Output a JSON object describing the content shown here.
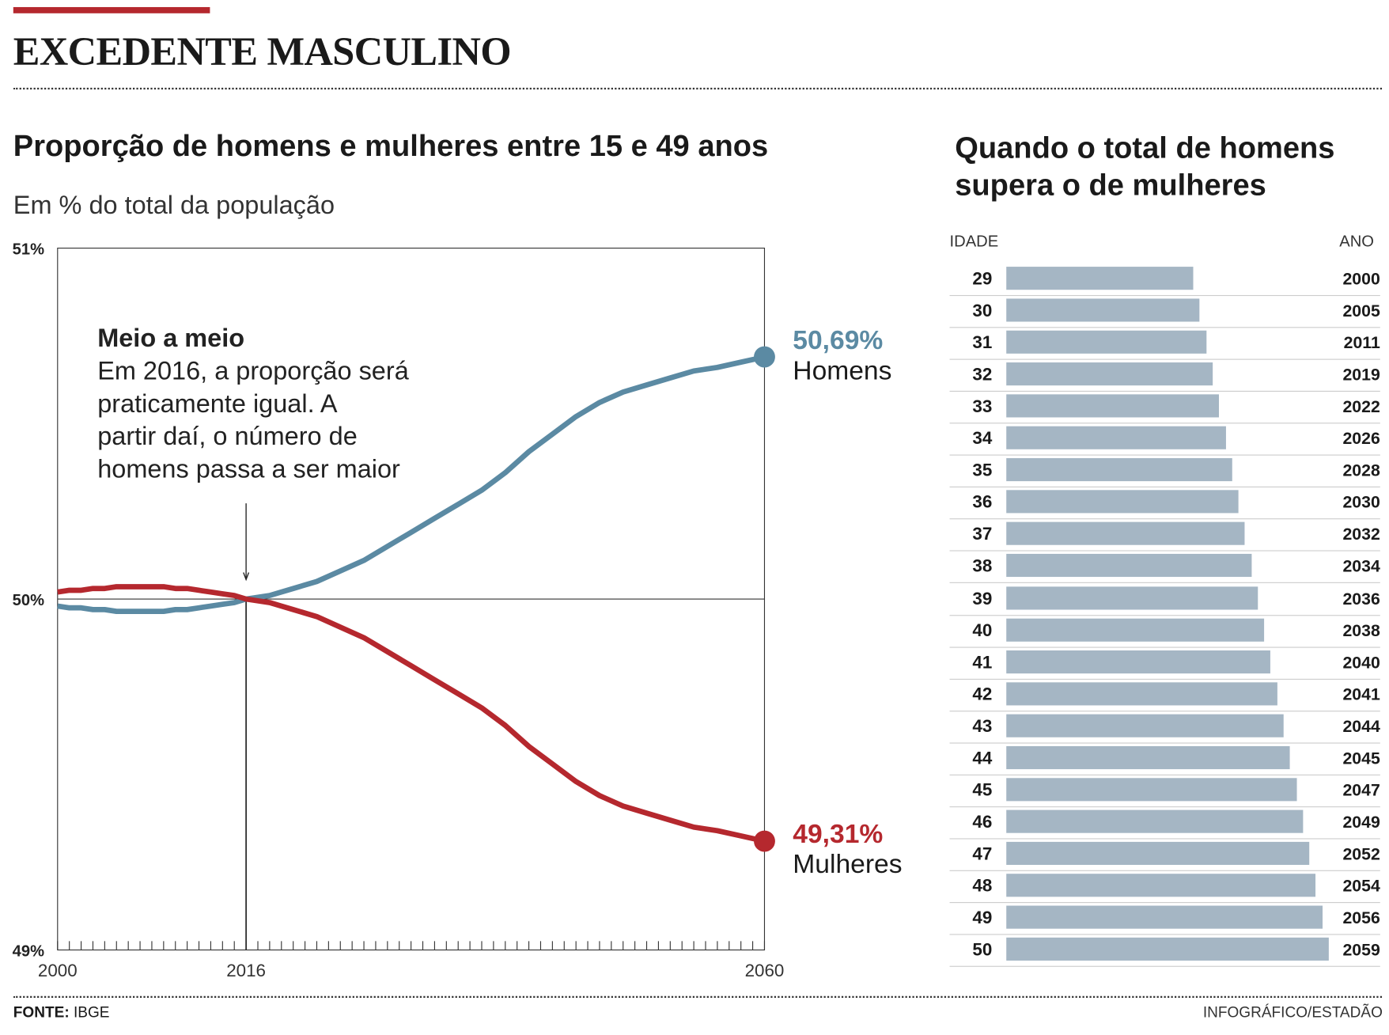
{
  "header": {
    "title": "EXCEDENTE MASCULINO"
  },
  "chart_data": [
    {
      "type": "line",
      "title": "Proporção de homens e mulheres entre 15 e 49 anos",
      "subtitle": "Em % do total da população",
      "ylim": [
        49,
        51
      ],
      "yticks": [
        "51%",
        "50%",
        "49%"
      ],
      "xlim": [
        2000,
        2060
      ],
      "xtick_labels": [
        "2000",
        "2016",
        "2060"
      ],
      "x": [
        2000,
        2001,
        2002,
        2003,
        2004,
        2005,
        2006,
        2007,
        2008,
        2009,
        2010,
        2011,
        2012,
        2013,
        2014,
        2015,
        2016,
        2018,
        2020,
        2022,
        2024,
        2026,
        2028,
        2030,
        2032,
        2034,
        2036,
        2038,
        2040,
        2042,
        2044,
        2046,
        2048,
        2050,
        2052,
        2054,
        2056,
        2058,
        2060
      ],
      "series": [
        {
          "name": "Homens",
          "end_label": "50,69%",
          "color": "#5b8aa3",
          "values": [
            49.98,
            49.975,
            49.975,
            49.97,
            49.97,
            49.965,
            49.965,
            49.965,
            49.965,
            49.965,
            49.97,
            49.97,
            49.975,
            49.98,
            49.985,
            49.99,
            50.0,
            50.01,
            50.03,
            50.05,
            50.08,
            50.11,
            50.15,
            50.19,
            50.23,
            50.27,
            50.31,
            50.36,
            50.42,
            50.47,
            50.52,
            50.56,
            50.59,
            50.61,
            50.63,
            50.65,
            50.66,
            50.675,
            50.69
          ]
        },
        {
          "name": "Mulheres",
          "end_label": "49,31%",
          "color": "#b5282e",
          "values": [
            50.02,
            50.025,
            50.025,
            50.03,
            50.03,
            50.035,
            50.035,
            50.035,
            50.035,
            50.035,
            50.03,
            50.03,
            50.025,
            50.02,
            50.015,
            50.01,
            50.0,
            49.99,
            49.97,
            49.95,
            49.92,
            49.89,
            49.85,
            49.81,
            49.77,
            49.73,
            49.69,
            49.64,
            49.58,
            49.53,
            49.48,
            49.44,
            49.41,
            49.39,
            49.37,
            49.35,
            49.34,
            49.325,
            49.31
          ]
        }
      ],
      "annotation": {
        "year": 2016,
        "title": "Meio a meio",
        "lines": [
          "Em 2016, a proporção será",
          "praticamente igual. A",
          "partir daí, o número de",
          "homens passa a ser maior"
        ]
      }
    },
    {
      "type": "bar",
      "title": "Quando o total de homens supera o de mulheres",
      "col_left": "IDADE",
      "col_right": "ANO",
      "color": "#a5b6c4",
      "categories": [
        "29",
        "30",
        "31",
        "32",
        "33",
        "34",
        "35",
        "36",
        "37",
        "38",
        "39",
        "40",
        "41",
        "42",
        "43",
        "44",
        "45",
        "46",
        "47",
        "48",
        "49",
        "50"
      ],
      "years": [
        "2000",
        "2005",
        "2011",
        "2019",
        "2022",
        "2026",
        "2028",
        "2030",
        "2032",
        "2034",
        "2036",
        "2038",
        "2040",
        "2041",
        "2044",
        "2045",
        "2047",
        "2049",
        "2052",
        "2054",
        "2056",
        "2059"
      ]
    }
  ],
  "footer": {
    "source_label": "FONTE:",
    "source": "IBGE",
    "credit": "INFOGRÁFICO/ESTADÃO"
  }
}
